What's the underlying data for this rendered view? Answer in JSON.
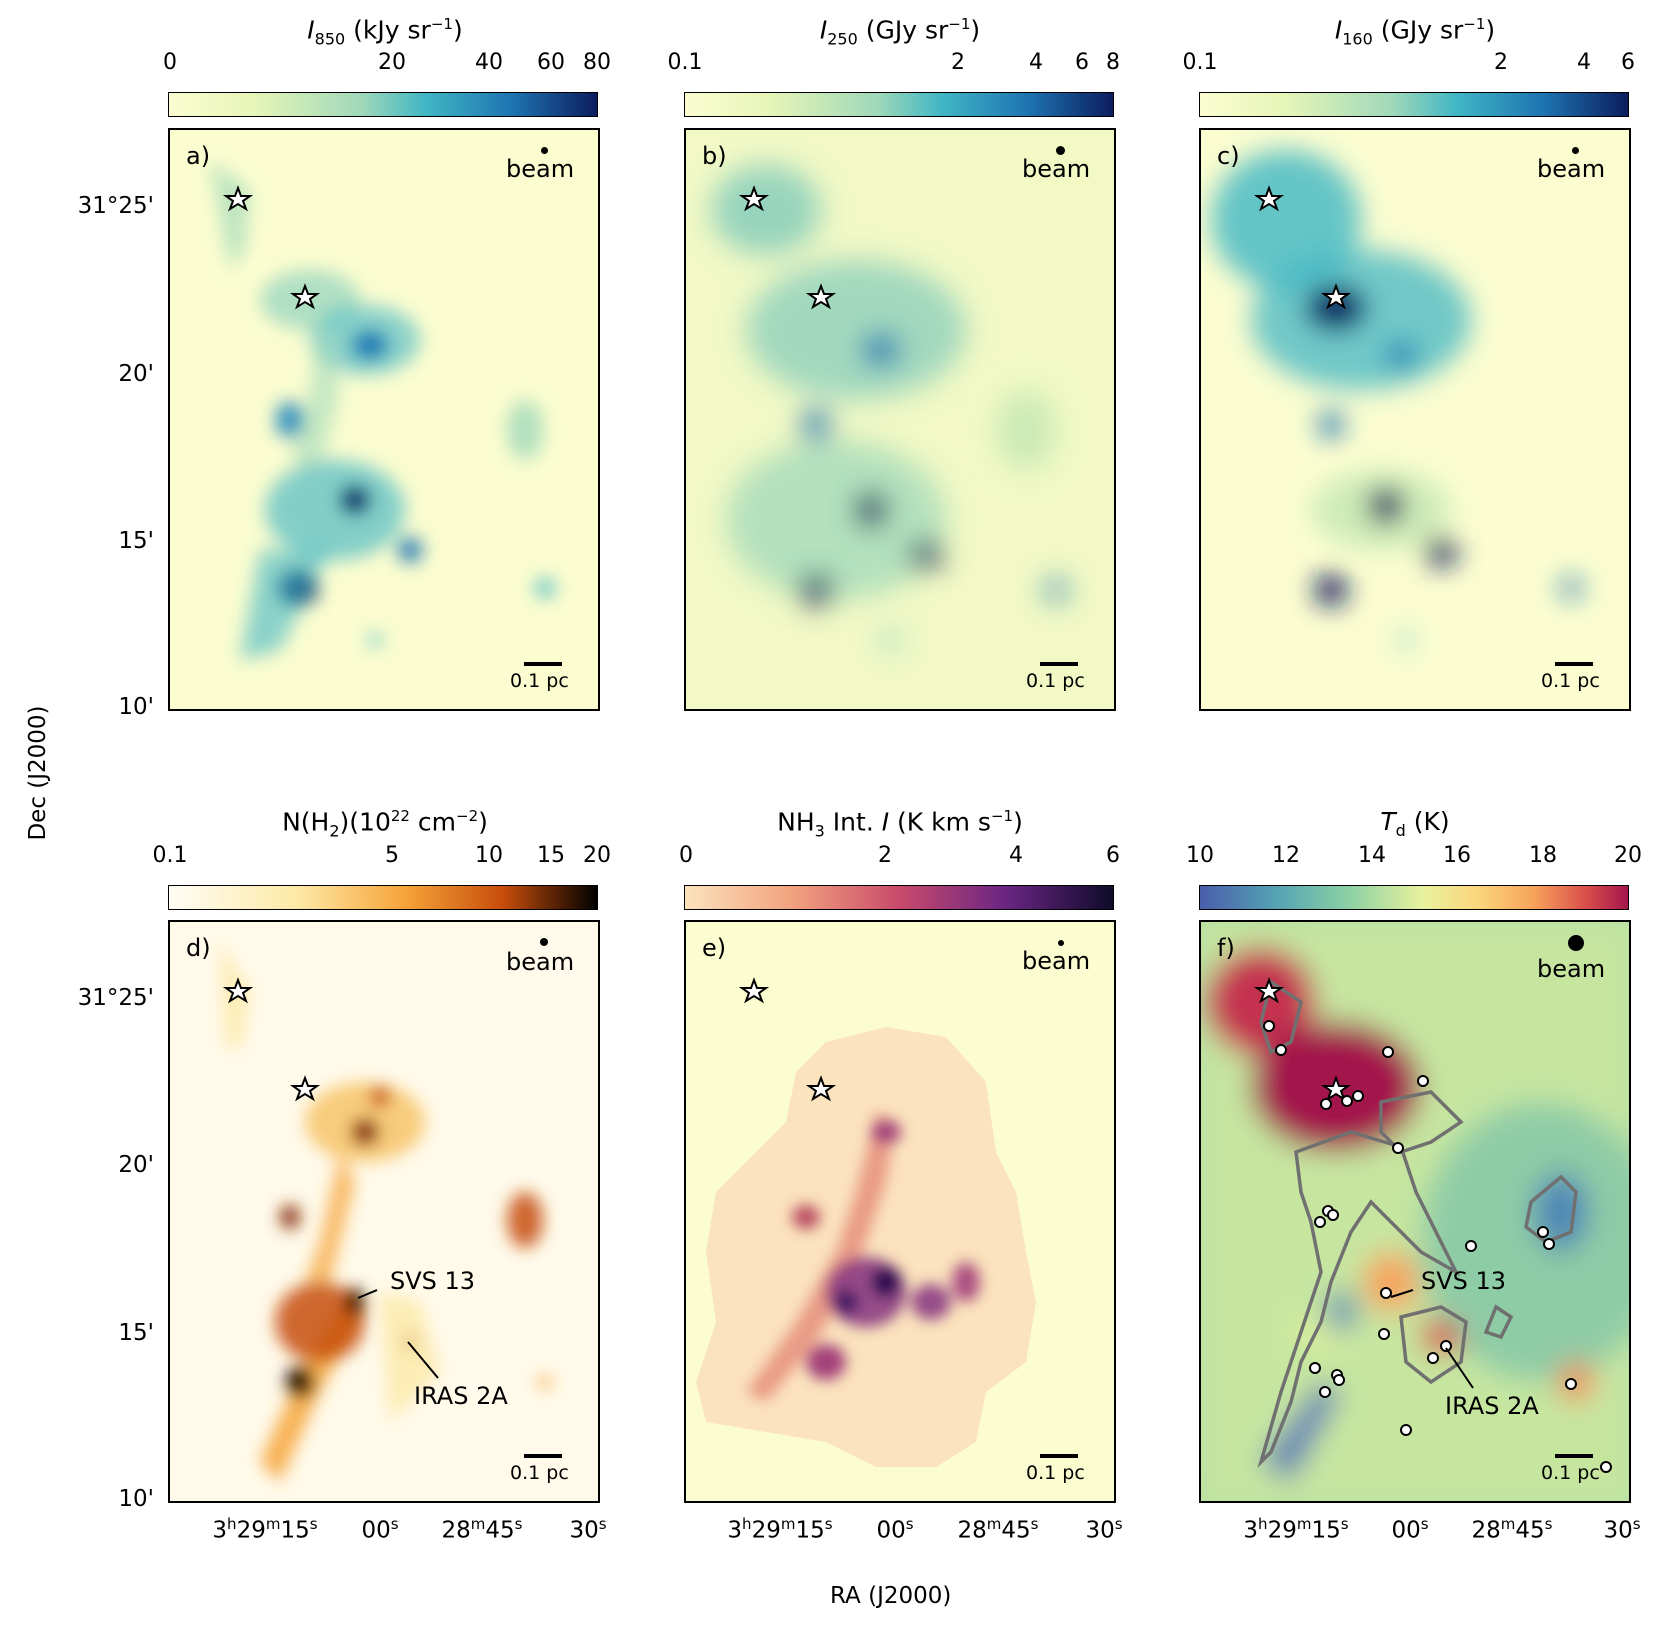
{
  "axes": {
    "ylabel": "Dec (J2000)",
    "xlabel": "RA (J2000)",
    "yticks": [
      "31°25'",
      "20'",
      "15'",
      "10'"
    ],
    "xticks": [
      "3h29m15s",
      "00s",
      "28m45s",
      "30s"
    ]
  },
  "panels": [
    {
      "id": "a",
      "label": "a)",
      "cbar_title": "I850 (kJy sr−1)",
      "cbar_ticks": [
        "0",
        "20",
        "40",
        "60",
        "80"
      ],
      "beam": "beam",
      "scale": "0.1 pc",
      "colors": [
        "#fbfdd0",
        "#c6e9b4",
        "#40b6c4",
        "#1e74b2",
        "#0c1d5e"
      ]
    },
    {
      "id": "b",
      "label": "b)",
      "cbar_title": "I250 (GJy sr−1)",
      "cbar_ticks": [
        "0.1",
        "2",
        "4",
        "6",
        "8"
      ],
      "beam": "beam",
      "scale": "0.1 pc",
      "colors": [
        "#fbfdd0",
        "#c6e9b4",
        "#40b6c4",
        "#1e74b2",
        "#0c1d5e"
      ]
    },
    {
      "id": "c",
      "label": "c)",
      "cbar_title": "I160 (GJy sr−1)",
      "cbar_ticks": [
        "0.1",
        "2",
        "4",
        "6"
      ],
      "beam": "beam",
      "scale": "0.1 pc",
      "colors": [
        "#fbfdd0",
        "#c6e9b4",
        "#40b6c4",
        "#1e74b2",
        "#0c1d5e"
      ]
    },
    {
      "id": "d",
      "label": "d)",
      "cbar_title": "N(H2)(1022 cm−2)",
      "cbar_ticks": [
        "0.1",
        "5",
        "10",
        "15",
        "20"
      ],
      "beam": "beam",
      "scale": "0.1 pc",
      "colors": [
        "#fffdf5",
        "#fde9a6",
        "#f6a43a",
        "#c74d0b",
        "#000000"
      ],
      "annotations": [
        "SVS 13",
        "IRAS 2A"
      ]
    },
    {
      "id": "e",
      "label": "e)",
      "cbar_title": "NH3 Int. I (K km s−1)",
      "cbar_ticks": [
        "0",
        "2",
        "4",
        "6"
      ],
      "beam": "beam",
      "scale": "0.1 pc",
      "colors": [
        "#fbe3bd",
        "#f2a27e",
        "#c94a6b",
        "#6a2583",
        "#0e0b29"
      ]
    },
    {
      "id": "f",
      "label": "f)",
      "cbar_title": "Td (K)",
      "cbar_ticks": [
        "10",
        "12",
        "14",
        "16",
        "18",
        "20"
      ],
      "beam": "beam",
      "scale": "0.1 pc",
      "colors": [
        "#4a5dab",
        "#6fc0a5",
        "#e8f29d",
        "#f6a35b",
        "#a3164c"
      ],
      "annotations": [
        "SVS 13",
        "IRAS 2A"
      ]
    }
  ]
}
